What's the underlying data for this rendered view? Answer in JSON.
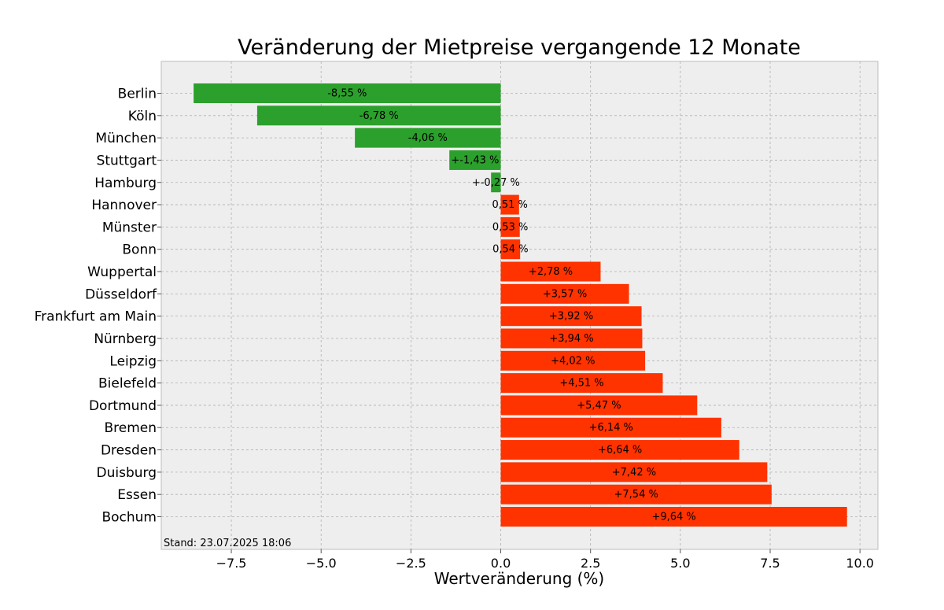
{
  "chart_data": {
    "type": "bar",
    "orientation": "horizontal",
    "title": "Veränderung der Mietpreise vergangende 12 Monate",
    "xlabel": "Wertveränderung (%)",
    "xlim": [
      -9.45,
      10.5
    ],
    "xticks": [
      -7.5,
      -5.0,
      -2.5,
      0.0,
      2.5,
      5.0,
      7.5,
      10.0
    ],
    "xtick_labels": [
      "−7.5",
      "−5.0",
      "−2.5",
      "0.0",
      "2.5",
      "5.0",
      "7.5",
      "10.0"
    ],
    "grid": true,
    "colors": {
      "negative": "#2ca02c",
      "positive": "#ff3300",
      "background": "#eeeeee",
      "grid": "#b0b0b0"
    },
    "categories": [
      "Berlin",
      "Köln",
      "München",
      "Stuttgart",
      "Hamburg",
      "Hannover",
      "Münster",
      "Bonn",
      "Wuppertal",
      "Düsseldorf",
      "Frankfurt am Main",
      "Nürnberg",
      "Leipzig",
      "Bielefeld",
      "Dortmund",
      "Bremen",
      "Dresden",
      "Duisburg",
      "Essen",
      "Bochum"
    ],
    "values": [
      -8.55,
      -6.78,
      -4.06,
      -1.43,
      -0.27,
      0.51,
      0.53,
      0.54,
      2.78,
      3.57,
      3.92,
      3.94,
      4.02,
      4.51,
      5.47,
      6.14,
      6.64,
      7.42,
      7.54,
      9.64
    ],
    "data_labels": [
      "-8,55 %",
      "-6,78 %",
      "-4,06 %",
      "+-1,43 %",
      "+-0,27 %",
      "0,51 %",
      "0,53 %",
      "0,54 %",
      "+2,78 %",
      "+3,57 %",
      "+3,92 %",
      "+3,94 %",
      "+4,02 %",
      "+4,51 %",
      "+5,47 %",
      "+6,14 %",
      "+6,64 %",
      "+7,42 %",
      "+7,54 %",
      "+9,64 %"
    ]
  },
  "footnote": "Stand: 23.07.2025 18:06"
}
